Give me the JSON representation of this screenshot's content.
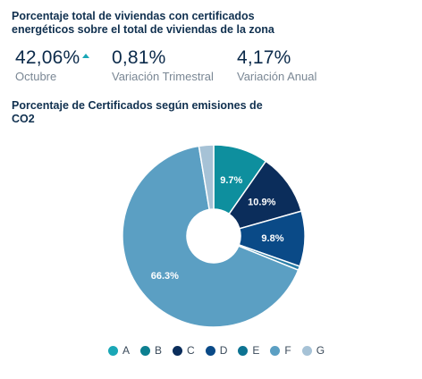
{
  "header": {
    "title": "Porcentaje total de viviendas con certificados energéticos sobre el total de viviendas de la zona"
  },
  "kpis": [
    {
      "value": "42,06%",
      "label": "Octubre",
      "trend": "up"
    },
    {
      "value": "0,81%",
      "label": "Variación Trimestral"
    },
    {
      "value": "4,17%",
      "label": "Variación Anual"
    }
  ],
  "chart_data": {
    "type": "pie",
    "title": "Porcentaje de Certificados según emisiones de CO2",
    "categories": [
      "A",
      "B",
      "C",
      "D",
      "E",
      "F",
      "G"
    ],
    "values": [
      9.7,
      10.9,
      9.8,
      0.7,
      0,
      66.3,
      2.6
    ],
    "data_labels": [
      "9.7%",
      "10.9%",
      "9.8%",
      "",
      "",
      "66.3%",
      ""
    ],
    "colors": [
      "#0e8f9e",
      "#0b2d5b",
      "#0a4a87",
      "#2a7ea8",
      "#0d7392",
      "#5b9fc3",
      "#a6c2d6"
    ],
    "legend_colors": [
      "#1aa7b6",
      "#0d7f90",
      "#0b2d5b",
      "#0a4a87",
      "#0d7392",
      "#5b9fc3",
      "#a6c2d6"
    ],
    "donut": true,
    "legend_position": "bottom"
  }
}
